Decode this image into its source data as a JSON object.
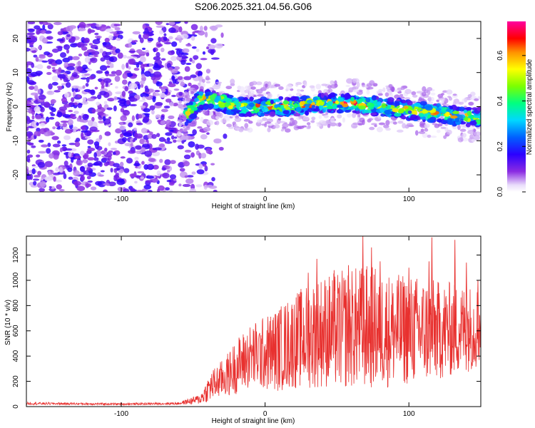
{
  "title": "S206.2025.321.04.56.G06",
  "chart_data": [
    {
      "type": "heatmap",
      "name": "spectrogram",
      "xlabel": "Height of straight line (km)",
      "ylabel": "Frequency (Hz)",
      "xlim": [
        -166,
        150
      ],
      "ylim": [
        -25,
        25
      ],
      "xticks": [
        -100,
        0,
        100
      ],
      "xtick_labels": [
        "-100",
        "0",
        "100"
      ],
      "yticks": [
        -20,
        -10,
        0,
        10,
        20
      ],
      "ytick_labels": [
        "-20",
        "-10",
        "0",
        "10",
        "20"
      ],
      "description_of_pattern": {
        "noise_region_x": [
          -166,
          -60
        ],
        "transition_x": [
          -60,
          -35
        ],
        "signal_band_center_hz": [
          [
            -55,
            -3
          ],
          [
            -45,
            2
          ],
          [
            -35,
            2
          ],
          [
            -20,
            0
          ],
          [
            0,
            0
          ],
          [
            20,
            0
          ],
          [
            40,
            1
          ],
          [
            60,
            1
          ],
          [
            80,
            0
          ],
          [
            100,
            -1
          ],
          [
            120,
            -2
          ],
          [
            140,
            -3
          ],
          [
            150,
            -3
          ]
        ],
        "signal_band_halfwidth_hz": 2.5,
        "peak_amplitude": 0.75
      },
      "colorbar": {
        "label": "Normalized spectral amplitude",
        "range": [
          0.0,
          0.75
        ],
        "ticks": [
          0.0,
          0.2,
          0.4,
          0.6
        ],
        "tick_labels": [
          "0.0",
          "0.2",
          "0.4",
          "0.6"
        ]
      }
    },
    {
      "type": "line",
      "name": "snr",
      "xlabel": "Height of straight line (km)",
      "ylabel": "SNR (10 * v/v)",
      "xlim": [
        -166,
        150
      ],
      "ylim": [
        0,
        1350
      ],
      "xticks": [
        -100,
        0,
        100
      ],
      "xtick_labels": [
        "-100",
        "0",
        "100"
      ],
      "yticks": [
        0,
        200,
        400,
        600,
        800,
        1000,
        1200
      ],
      "ytick_labels": [
        "0",
        "200",
        "400",
        "600",
        "800",
        "1000",
        "1200"
      ],
      "color": "#e8312f",
      "envelope": {
        "x": [
          -166,
          -100,
          -60,
          -45,
          -38,
          -30,
          -25,
          -20,
          -10,
          0,
          10,
          20,
          30,
          40,
          50,
          60,
          70,
          80,
          90,
          100,
          110,
          120,
          130,
          140,
          150
        ],
        "mean": [
          25,
          20,
          25,
          60,
          160,
          220,
          260,
          320,
          400,
          420,
          460,
          520,
          560,
          600,
          600,
          620,
          630,
          620,
          600,
          610,
          600,
          600,
          610,
          620,
          640
        ],
        "amp": [
          10,
          8,
          10,
          40,
          120,
          150,
          180,
          220,
          260,
          300,
          340,
          380,
          420,
          450,
          470,
          480,
          500,
          480,
          450,
          440,
          430,
          400,
          380,
          350,
          330
        ]
      },
      "peaks": [
        {
          "x": 30,
          "y": 1060
        },
        {
          "x": 36,
          "y": 1170
        },
        {
          "x": 48,
          "y": 1080
        },
        {
          "x": 58,
          "y": 1120
        },
        {
          "x": 68,
          "y": 1350
        },
        {
          "x": 74,
          "y": 1260
        },
        {
          "x": 80,
          "y": 1150
        },
        {
          "x": 92,
          "y": 1000
        },
        {
          "x": 100,
          "y": 1100
        },
        {
          "x": 114,
          "y": 1150
        },
        {
          "x": 116,
          "y": 1340
        },
        {
          "x": 132,
          "y": 1320
        },
        {
          "x": 140,
          "y": 1140
        },
        {
          "x": 148,
          "y": 1000
        }
      ]
    }
  ]
}
